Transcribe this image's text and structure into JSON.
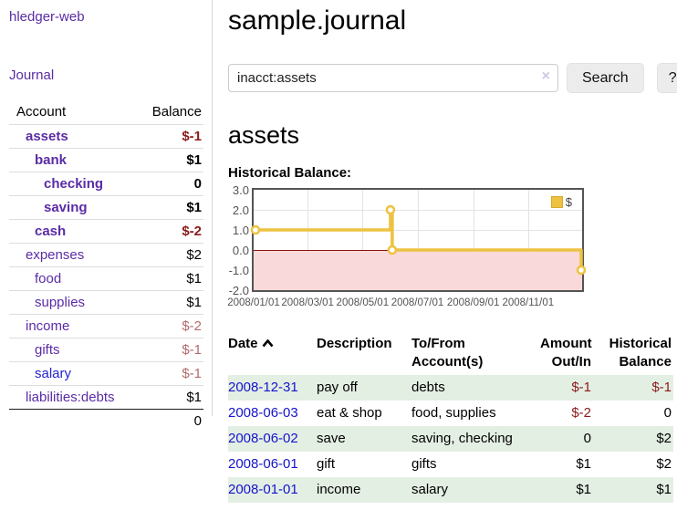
{
  "app": {
    "title": "hledger-web"
  },
  "colors": {
    "accent_purple": "#5a2ca6",
    "link_blue": "#2323cc",
    "date_link_blue": "#1414cc",
    "negative_strong": "#8b1a1a",
    "negative_soft": "#b26a6a",
    "row_stripe_green": "#e4efe4",
    "series_gold": "#edc240",
    "negative_region_pink": "#f9d9d9",
    "zero_line_red": "#8b1010",
    "chart_border_gray": "#545454",
    "button_gray": "#ececec"
  },
  "sidebar": {
    "journal_link": "Journal",
    "table": {
      "headers": {
        "account": "Account",
        "balance": "Balance"
      },
      "rows": [
        {
          "label": "assets",
          "balance": "$-1",
          "depth": 0,
          "bold": true,
          "neg": "strong"
        },
        {
          "label": "bank",
          "balance": "$1",
          "depth": 1,
          "bold": true,
          "neg": "none"
        },
        {
          "label": "checking",
          "balance": "0",
          "depth": 2,
          "bold": true,
          "neg": "none"
        },
        {
          "label": "saving",
          "balance": "$1",
          "depth": 2,
          "bold": true,
          "neg": "none"
        },
        {
          "label": "cash",
          "balance": "$-2",
          "depth": 1,
          "bold": true,
          "neg": "strong"
        },
        {
          "label": "expenses",
          "balance": "$2",
          "depth": 0,
          "bold": false,
          "neg": "none"
        },
        {
          "label": "food",
          "balance": "$1",
          "depth": 1,
          "bold": false,
          "neg": "none"
        },
        {
          "label": "supplies",
          "balance": "$1",
          "depth": 1,
          "bold": false,
          "neg": "none"
        },
        {
          "label": "income",
          "balance": "$-2",
          "depth": 0,
          "bold": false,
          "neg": "soft"
        },
        {
          "label": "gifts",
          "balance": "$-1",
          "depth": 1,
          "bold": false,
          "neg": "soft"
        },
        {
          "label": "salary",
          "balance": "$-1",
          "depth": 1,
          "bold": false,
          "neg": "soft",
          "blue": true
        },
        {
          "label": "liabilities:debts",
          "balance": "$1",
          "depth": 0,
          "bold": false,
          "neg": "none"
        }
      ],
      "total": "0"
    }
  },
  "main": {
    "title": "sample.journal",
    "search": {
      "value": "inacct:assets",
      "clear_icon": "×",
      "button_label": "Search",
      "help_label": "?"
    },
    "account_heading": "assets",
    "chart_label": "Historical Balance:",
    "chart_data": {
      "type": "line",
      "title": "Historical Balance:",
      "step": true,
      "x_range": [
        "2008-01-01",
        "2008-12-31"
      ],
      "ylim": [
        -2.0,
        3.0
      ],
      "y_tick_labels": [
        "3.0",
        "2.0",
        "1.0",
        "0.0",
        "-1.0",
        "-2.0"
      ],
      "y_ticks": [
        3.0,
        2.0,
        1.0,
        0.0,
        -1.0,
        -2.0
      ],
      "x_tick_labels": [
        "2008/01/01",
        "2008/03/01",
        "2008/05/01",
        "2008/07/01",
        "2008/09/01",
        "2008/11/01"
      ],
      "x_tick_dates": [
        "2008-01-01",
        "2008-03-01",
        "2008-05-01",
        "2008-07-01",
        "2008-09-01",
        "2008-11-01"
      ],
      "legend": {
        "label": "$",
        "position": "top-right"
      },
      "series": [
        {
          "name": "$",
          "color": "#edc240",
          "points": [
            {
              "date": "2008-01-01",
              "value": 1
            },
            {
              "date": "2008-06-01",
              "value": 2
            },
            {
              "date": "2008-06-03",
              "value": 0
            },
            {
              "date": "2008-12-31",
              "value": -1
            }
          ]
        }
      ],
      "negative_region_color": "#f9d9d9",
      "zero_line_color": "#8b1010",
      "grid": true
    },
    "register": {
      "headers": [
        {
          "lines": [
            "Date"
          ],
          "align": "left",
          "sort": "asc"
        },
        {
          "lines": [
            "Description"
          ],
          "align": "left"
        },
        {
          "lines": [
            "To/From",
            "Account(s)"
          ],
          "align": "left"
        },
        {
          "lines": [
            "Amount",
            "Out/In"
          ],
          "align": "right"
        },
        {
          "lines": [
            "Historical",
            "Balance"
          ],
          "align": "right"
        }
      ],
      "rows": [
        {
          "date": "2008-12-31",
          "description": "pay off",
          "accounts": "debts",
          "amount": "$-1",
          "amount_neg": true,
          "balance": "$-1",
          "balance_neg": true
        },
        {
          "date": "2008-06-03",
          "description": "eat & shop",
          "accounts": "food, supplies",
          "amount": "$-2",
          "amount_neg": true,
          "balance": "0",
          "balance_neg": false
        },
        {
          "date": "2008-06-02",
          "description": "save",
          "accounts": "saving, checking",
          "amount": "0",
          "amount_neg": false,
          "balance": "$2",
          "balance_neg": false
        },
        {
          "date": "2008-06-01",
          "description": "gift",
          "accounts": "gifts",
          "amount": "$1",
          "amount_neg": false,
          "balance": "$2",
          "balance_neg": false
        },
        {
          "date": "2008-01-01",
          "description": "income",
          "accounts": "salary",
          "amount": "$1",
          "amount_neg": false,
          "balance": "$1",
          "balance_neg": false
        }
      ]
    }
  }
}
